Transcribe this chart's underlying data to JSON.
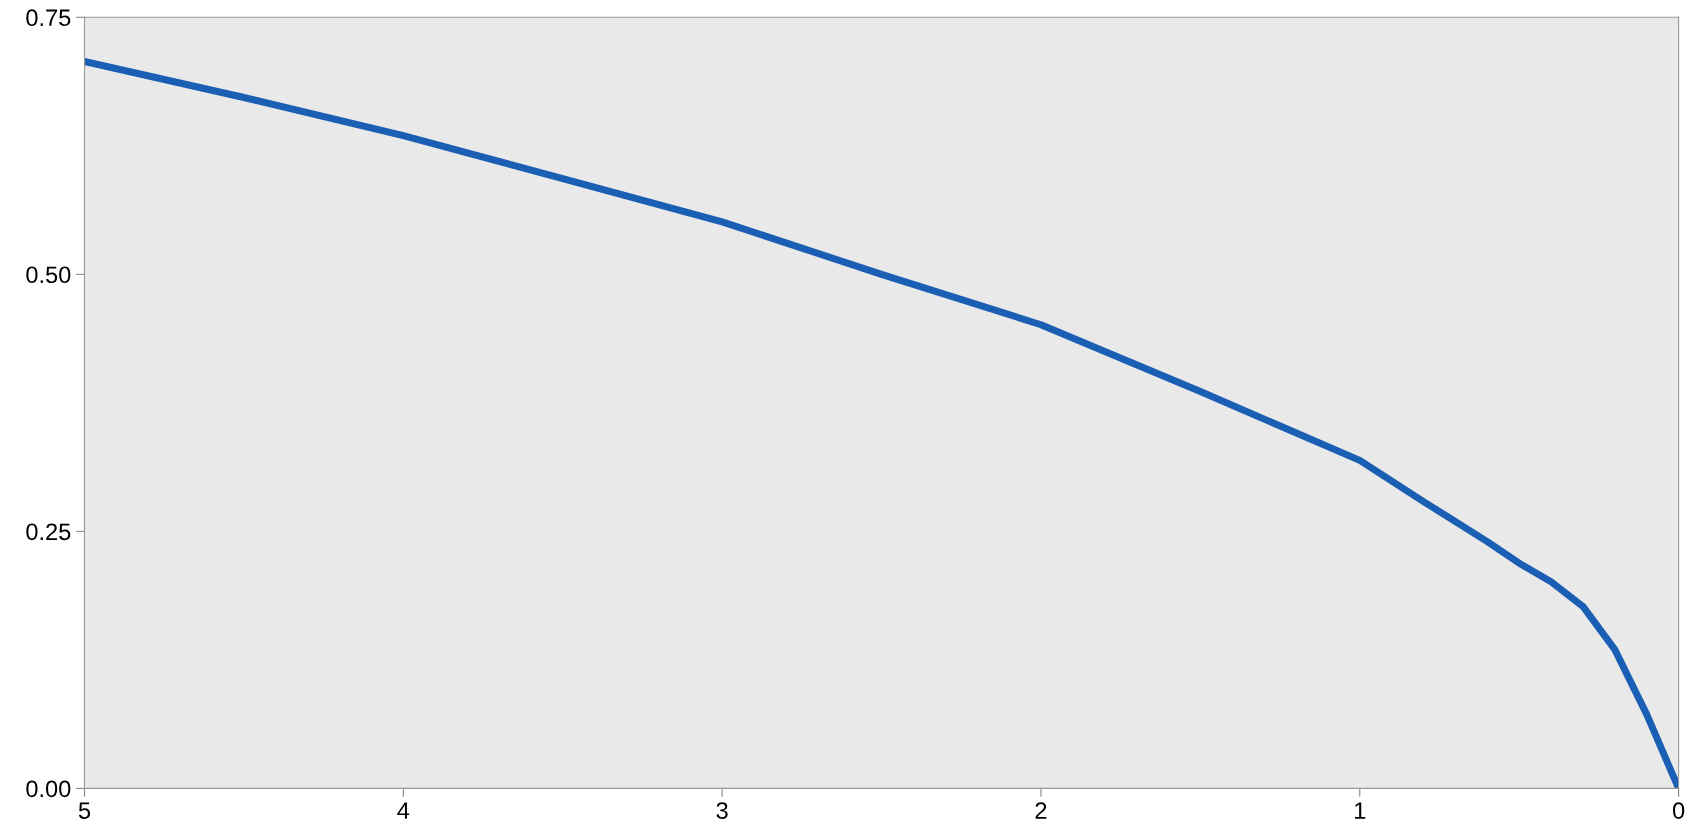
{
  "chart_data": {
    "type": "line",
    "x": [
      5,
      4.5,
      4,
      3.5,
      3,
      2.5,
      2,
      1.5,
      1,
      0.8,
      0.6,
      0.5,
      0.4,
      0.3,
      0.2,
      0.1,
      0
    ],
    "series": [
      {
        "color": "#1a5fb4",
        "values": [
          0.707,
          0.672,
          0.635,
          0.593,
          0.551,
          0.5,
          0.451,
          0.386,
          0.319,
          0.279,
          0.24,
          0.219,
          0.201,
          0.177,
          0.135,
          0.072,
          0
        ]
      }
    ],
    "xlim": [
      5,
      0
    ],
    "xticks": [
      5,
      4,
      3,
      2,
      1,
      0
    ],
    "ylim": [
      0,
      0.75
    ],
    "yticks": [
      {
        "value": 0,
        "label": "0.00"
      },
      {
        "value": 0.25,
        "label": "0.25"
      },
      {
        "value": 0.5,
        "label": "0.50"
      },
      {
        "value": 0.75,
        "label": "0.75"
      }
    ],
    "grid": false,
    "marker": "none",
    "line_style": "solid"
  }
}
